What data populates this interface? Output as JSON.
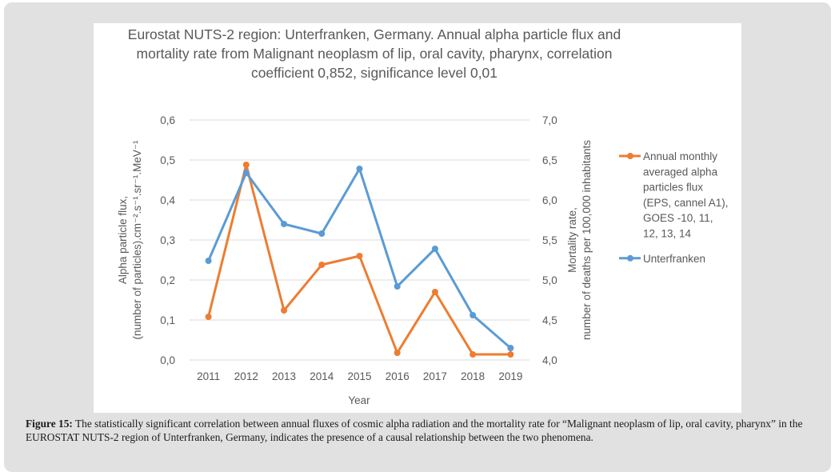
{
  "chart_data": {
    "type": "line",
    "title_lines": [
      "Eurostat NUTS-2 region: Unterfranken, Germany. Annual alpha particle flux and",
      "mortality rate from Malignant neoplasm of lip, oral cavity, pharynx, correlation",
      "coefficient 0,852, significance level 0,01"
    ],
    "xlabel": "Year",
    "ylabel_left_lines": [
      "Alpha particle flux,",
      "(number of particles).cm⁻².s⁻¹.sr⁻¹.MeV⁻¹"
    ],
    "ylabel_right_lines": [
      "Mortality rate,",
      "number of deaths per 100,000 inhabitants"
    ],
    "categories": [
      "2011",
      "2012",
      "2013",
      "2014",
      "2015",
      "2016",
      "2017",
      "2018",
      "2019"
    ],
    "y_left": {
      "min": 0.0,
      "max": 0.6,
      "ticks": [
        "0,0",
        "0,1",
        "0,2",
        "0,3",
        "0,4",
        "0,5",
        "0,6"
      ]
    },
    "y_right": {
      "min": 4.0,
      "max": 7.0,
      "ticks": [
        "4,0",
        "4,5",
        "5,0",
        "5,5",
        "6,0",
        "6,5",
        "7,0"
      ]
    },
    "grid": true,
    "legend_position": "right",
    "series": [
      {
        "name": "Annual monthly averaged alpha particles flux (EPS, cannel A1), GOES -10, 11, 12, 13, 14",
        "legend_lines": [
          "Annual monthly",
          "averaged alpha",
          "particles flux",
          "(EPS, cannel A1),",
          "GOES -10, 11,",
          "12, 13, 14"
        ],
        "axis": "left",
        "color": "#ed7d31",
        "values": [
          0.108,
          0.488,
          0.124,
          0.238,
          0.26,
          0.018,
          0.17,
          0.014,
          0.014
        ]
      },
      {
        "name": "Unterfranken",
        "legend_lines": [
          "Unterfranken"
        ],
        "axis": "right",
        "color": "#5b9bd5",
        "values": [
          5.24,
          6.34,
          5.7,
          5.58,
          6.39,
          4.92,
          5.39,
          4.56,
          4.15
        ]
      }
    ]
  },
  "caption": {
    "label": "Figure 15:",
    "text": " The statistically significant correlation between annual fluxes of cosmic alpha radiation and the mortality rate for “Malignant neoplasm of lip, oral cavity, pharynx” in the EUROSTAT NUTS-2 region of Unterfranken, Germany, indicates the presence of a causal relationship between the two phenomena."
  }
}
